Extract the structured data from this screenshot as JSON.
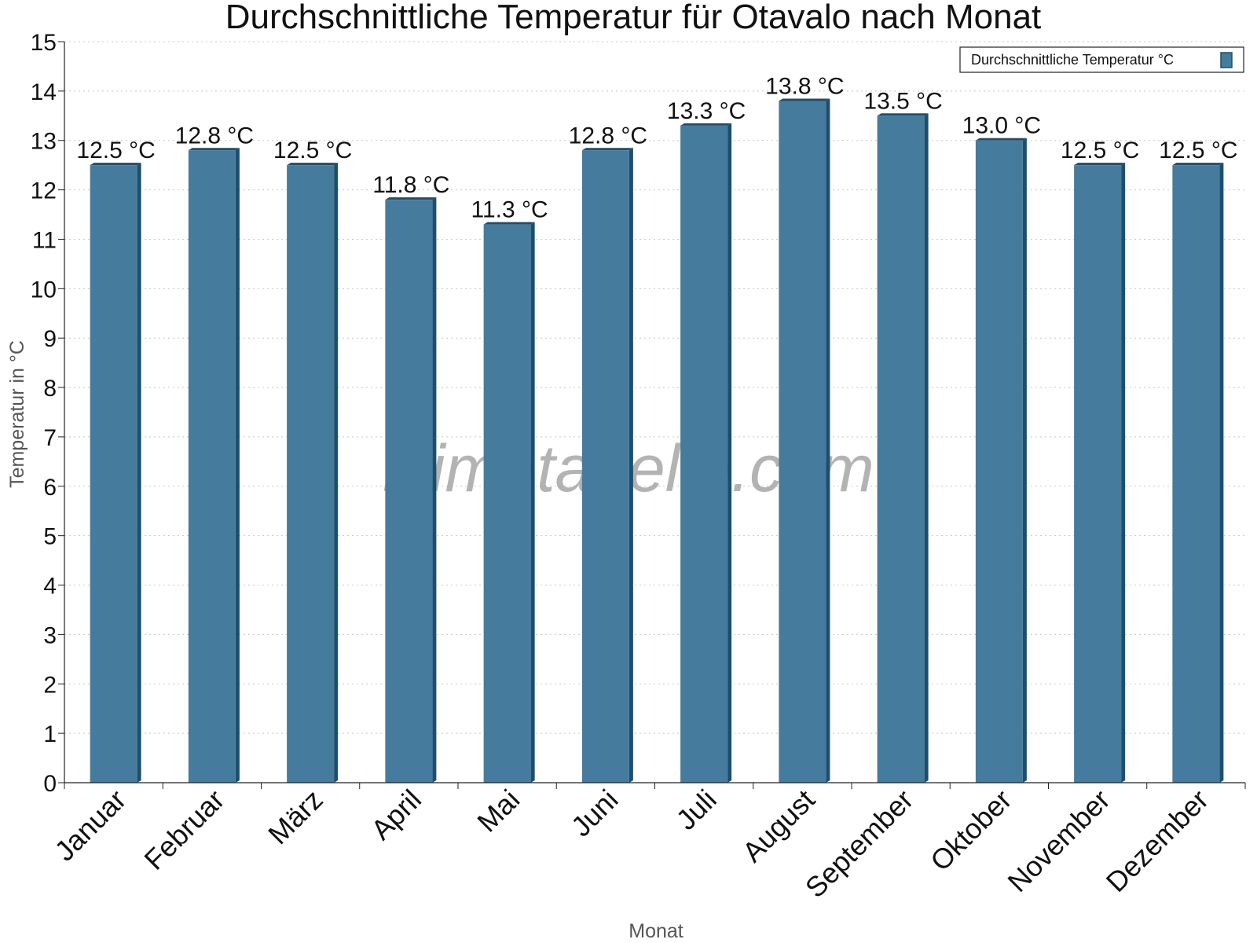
{
  "watermark": "klimatabelle.com",
  "colors": {
    "bar": "#457b9d",
    "bar_edge": "#1d4e6e",
    "grid": "#c8c8c8"
  },
  "chart_data": {
    "type": "bar",
    "title": "Durchschnittliche Temperatur für Otavalo nach Monat",
    "xlabel": "Monat",
    "ylabel": "Temperatur in °C",
    "ylim": [
      0,
      15
    ],
    "yticks": [
      0,
      1,
      2,
      3,
      4,
      5,
      6,
      7,
      8,
      9,
      10,
      11,
      12,
      13,
      14,
      15
    ],
    "grid": true,
    "legend_position": "top-right",
    "categories": [
      "Januar",
      "Februar",
      "März",
      "April",
      "Mai",
      "Juni",
      "Juli",
      "August",
      "September",
      "Oktober",
      "November",
      "Dezember"
    ],
    "series": [
      {
        "name": "Durchschnittliche Temperatur °C",
        "values": [
          12.5,
          12.8,
          12.5,
          11.8,
          11.3,
          12.8,
          13.3,
          13.8,
          13.5,
          13.0,
          12.5,
          12.5
        ],
        "labels": [
          "12.5 °C",
          "12.8 °C",
          "12.5 °C",
          "11.8 °C",
          "11.3 °C",
          "12.8 °C",
          "13.3 °C",
          "13.8 °C",
          "13.5 °C",
          "13.0 °C",
          "12.5 °C",
          "12.5 °C"
        ]
      }
    ]
  }
}
